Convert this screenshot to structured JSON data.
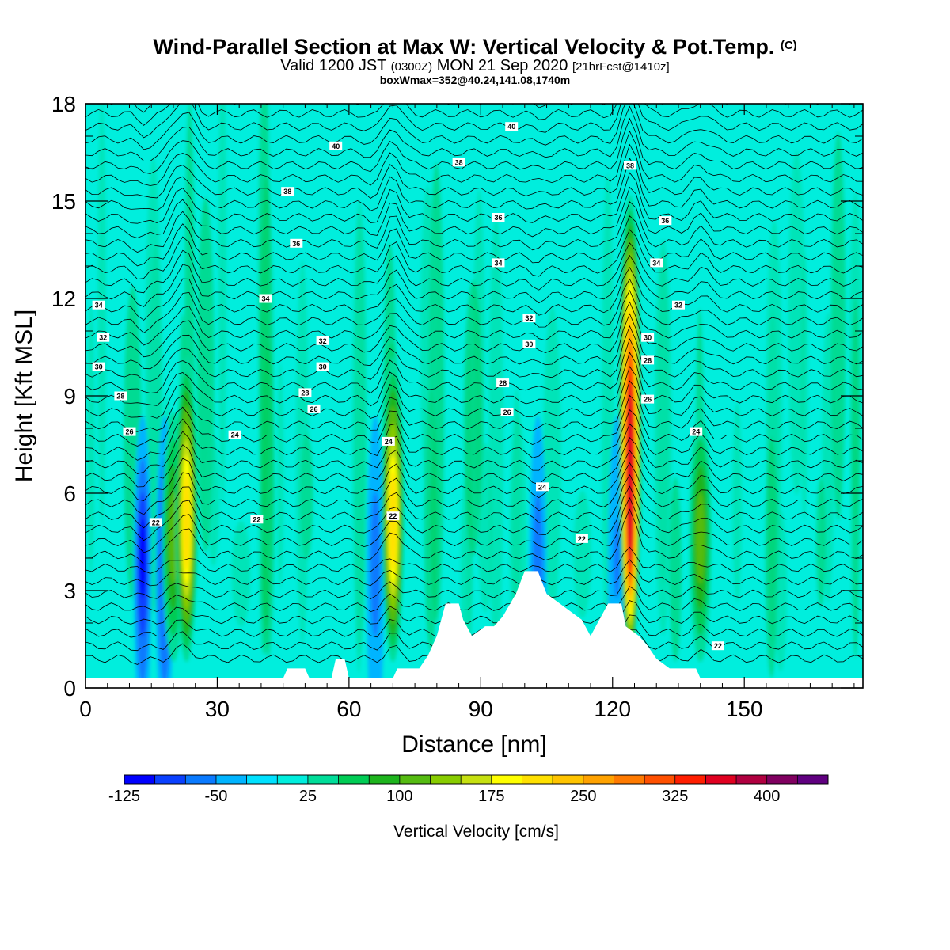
{
  "title": {
    "main": "Wind-Parallel Section at Max W: Vertical Velocity & Pot.Temp.",
    "copyright": "(C)",
    "valid_prefix": "Valid 1200 JST",
    "valid_utc": "(0300Z)",
    "valid_date": "MON 21 Sep 2020",
    "forecast": "[21hrFcst@1410z]",
    "boxwmax": "boxWmax=352@40.24,141.08,1740m"
  },
  "chart_data": {
    "type": "heatmap",
    "xlabel": "Distance [nm]",
    "ylabel": "Height [Kft MSL]",
    "xlim": [
      0,
      177
    ],
    "ylim": [
      0,
      18
    ],
    "xticks": [
      0,
      30,
      60,
      90,
      120,
      150
    ],
    "yticks": [
      0,
      3,
      6,
      9,
      12,
      15,
      18
    ],
    "colorbar": {
      "label": "Vertical Velocity [cm/s]",
      "ticks": [
        -125,
        -50,
        25,
        100,
        175,
        250,
        325,
        400
      ],
      "colors": [
        "#0000ff",
        "#0a40ff",
        "#0a7aff",
        "#00b4ff",
        "#00e1ff",
        "#00eedd",
        "#00dd99",
        "#00cc55",
        "#1db41d",
        "#55bb11",
        "#88cc00",
        "#c6e010",
        "#ffff00",
        "#ffe000",
        "#ffc400",
        "#ffa200",
        "#ff7a00",
        "#ff5000",
        "#ff1e00",
        "#e00020",
        "#b00040",
        "#800060",
        "#600080"
      ]
    },
    "updrafts": [
      {
        "x": 20,
        "w_max": 110
      },
      {
        "x": 23,
        "w_max": 200
      },
      {
        "x": 70,
        "w_max": 210
      },
      {
        "x": 124,
        "w_max": 352
      },
      {
        "x": 140,
        "w_max": 110
      }
    ],
    "downdrafts": [
      {
        "x": 13,
        "w_min": -125
      },
      {
        "x": 18,
        "w_min": -90
      },
      {
        "x": 66,
        "w_min": -70
      },
      {
        "x": 103,
        "w_min": -60
      },
      {
        "x": 121,
        "w_min": -55
      }
    ],
    "theta_contours": {
      "units": "C",
      "levels": [
        22,
        24,
        26,
        28,
        30,
        32,
        34,
        36,
        38,
        40
      ],
      "labels": [
        {
          "text": "22",
          "x": 16,
          "y": 5.1
        },
        {
          "text": "22",
          "x": 39,
          "y": 5.2
        },
        {
          "text": "22",
          "x": 70,
          "y": 5.3
        },
        {
          "text": "22",
          "x": 113,
          "y": 4.6
        },
        {
          "text": "22",
          "x": 144,
          "y": 1.3
        },
        {
          "text": "24",
          "x": 34,
          "y": 7.8
        },
        {
          "text": "24",
          "x": 69,
          "y": 7.6
        },
        {
          "text": "24",
          "x": 104,
          "y": 6.2
        },
        {
          "text": "24",
          "x": 139,
          "y": 7.9
        },
        {
          "text": "26",
          "x": 10,
          "y": 7.9
        },
        {
          "text": "26",
          "x": 52,
          "y": 8.6
        },
        {
          "text": "26",
          "x": 96,
          "y": 8.5
        },
        {
          "text": "26",
          "x": 128,
          "y": 8.9
        },
        {
          "text": "28",
          "x": 8,
          "y": 9.0
        },
        {
          "text": "28",
          "x": 50,
          "y": 9.1
        },
        {
          "text": "28",
          "x": 95,
          "y": 9.4
        },
        {
          "text": "28",
          "x": 128,
          "y": 10.1
        },
        {
          "text": "30",
          "x": 3,
          "y": 9.9
        },
        {
          "text": "30",
          "x": 54,
          "y": 9.9
        },
        {
          "text": "30",
          "x": 101,
          "y": 10.6
        },
        {
          "text": "30",
          "x": 128,
          "y": 10.8
        },
        {
          "text": "32",
          "x": 4,
          "y": 10.8
        },
        {
          "text": "32",
          "x": 54,
          "y": 10.7
        },
        {
          "text": "32",
          "x": 101,
          "y": 11.4
        },
        {
          "text": "32",
          "x": 135,
          "y": 11.8
        },
        {
          "text": "34",
          "x": 3,
          "y": 11.8
        },
        {
          "text": "34",
          "x": 41,
          "y": 12.0
        },
        {
          "text": "34",
          "x": 94,
          "y": 13.1
        },
        {
          "text": "34",
          "x": 130,
          "y": 13.1
        },
        {
          "text": "36",
          "x": 48,
          "y": 13.7
        },
        {
          "text": "36",
          "x": 94,
          "y": 14.5
        },
        {
          "text": "36",
          "x": 132,
          "y": 14.4
        },
        {
          "text": "38",
          "x": 46,
          "y": 15.3
        },
        {
          "text": "38",
          "x": 85,
          "y": 16.2
        },
        {
          "text": "38",
          "x": 124,
          "y": 16.1
        },
        {
          "text": "40",
          "x": 57,
          "y": 16.7
        },
        {
          "text": "40",
          "x": 97,
          "y": 17.3
        }
      ]
    },
    "terrain": [
      [
        0,
        0.3
      ],
      [
        45,
        0.3
      ],
      [
        46,
        0.6
      ],
      [
        50,
        0.6
      ],
      [
        51,
        0.3
      ],
      [
        56,
        0.3
      ],
      [
        57,
        0.9
      ],
      [
        59,
        0.9
      ],
      [
        60,
        0.3
      ],
      [
        70,
        0.3
      ],
      [
        71,
        0.6
      ],
      [
        76,
        0.6
      ],
      [
        78,
        1.0
      ],
      [
        80,
        1.6
      ],
      [
        82,
        2.6
      ],
      [
        85,
        2.6
      ],
      [
        86,
        2.1
      ],
      [
        88,
        1.6
      ],
      [
        91,
        1.9
      ],
      [
        93,
        1.9
      ],
      [
        95,
        2.2
      ],
      [
        98,
        2.9
      ],
      [
        100,
        3.6
      ],
      [
        103,
        3.6
      ],
      [
        105,
        2.9
      ],
      [
        110,
        2.4
      ],
      [
        113,
        2.1
      ],
      [
        115,
        1.6
      ],
      [
        117,
        2.1
      ],
      [
        119,
        2.6
      ],
      [
        122,
        2.6
      ],
      [
        123,
        1.9
      ],
      [
        126,
        1.6
      ],
      [
        128,
        1.3
      ],
      [
        130,
        0.9
      ],
      [
        133,
        0.6
      ],
      [
        139,
        0.6
      ],
      [
        140,
        0.3
      ],
      [
        177,
        0.3
      ]
    ]
  }
}
